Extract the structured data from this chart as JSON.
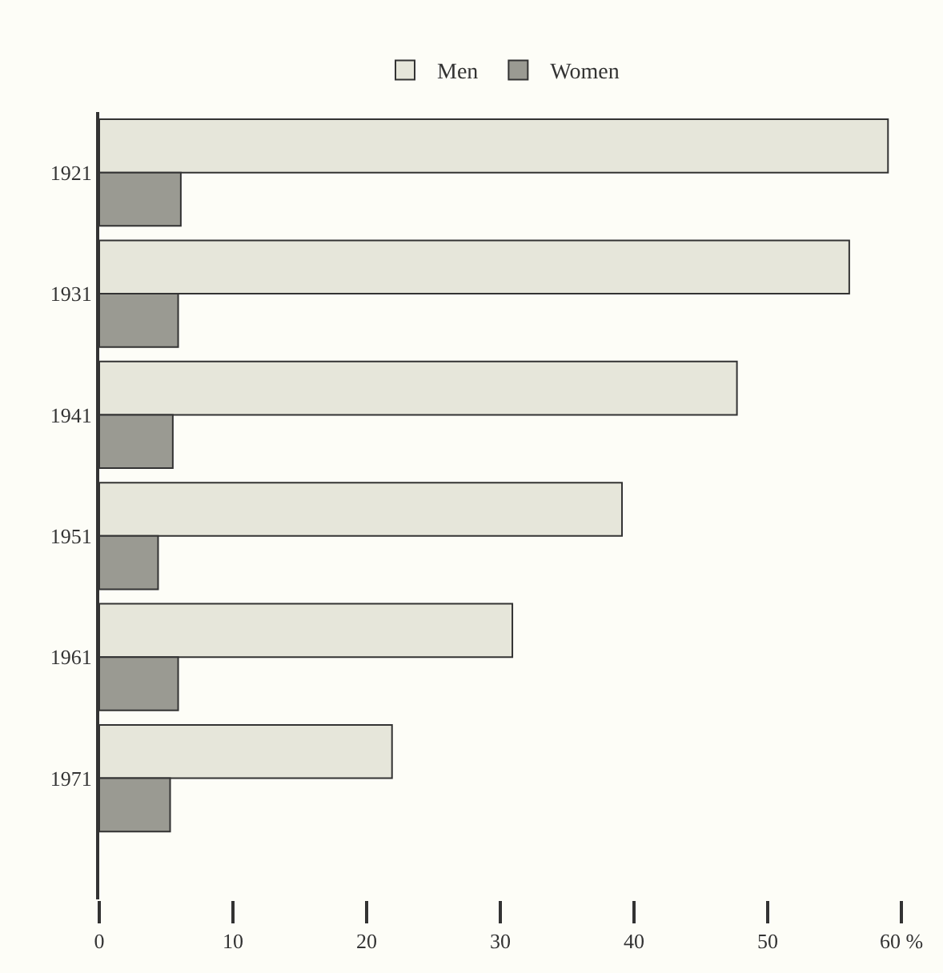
{
  "chart_data": {
    "type": "bar",
    "orientation": "horizontal",
    "categories": [
      "1921",
      "1931",
      "1941",
      "1951",
      "1961",
      "1971"
    ],
    "series": [
      {
        "name": "Men",
        "color": "#e6e6da",
        "values": [
          59.0,
          56.1,
          47.7,
          39.1,
          30.9,
          21.9
        ]
      },
      {
        "name": "Women",
        "color": "#9a9a92",
        "values": [
          6.1,
          5.9,
          5.5,
          4.4,
          5.9,
          5.3
        ]
      }
    ],
    "xlim": [
      0,
      60
    ],
    "xticks": [
      0,
      10,
      20,
      30,
      40,
      50,
      {
        "value": 60,
        "label": "60 %"
      }
    ],
    "legend": "top",
    "grid": false
  }
}
